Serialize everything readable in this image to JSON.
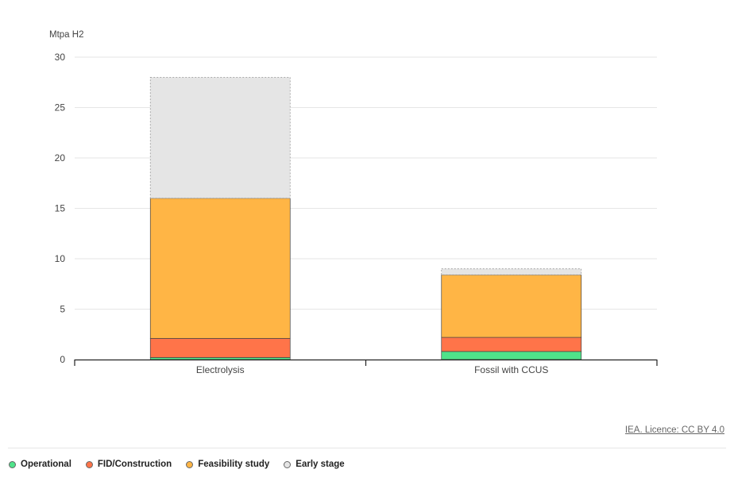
{
  "chart_data": {
    "type": "bar",
    "stacked": true,
    "ylabel": "Mtpa H2",
    "ylim": [
      0,
      30
    ],
    "yticks": [
      0,
      5,
      10,
      15,
      20,
      25,
      30
    ],
    "grid": true,
    "categories": [
      "Electrolysis",
      "Fossil with CCUS"
    ],
    "series": [
      {
        "name": "Operational",
        "color": "#4fe38a",
        "values": [
          0.2,
          0.8
        ]
      },
      {
        "name": "FID/Construction",
        "color": "#ff7449",
        "values": [
          1.9,
          1.4
        ]
      },
      {
        "name": "Feasibility study",
        "color": "#ffb545",
        "values": [
          13.9,
          6.2
        ]
      },
      {
        "name": "Early stage",
        "color": "#e5e5e5",
        "values": [
          12.0,
          0.6
        ]
      }
    ],
    "legend_position": "bottom-left"
  },
  "source": "IEA. Licence: CC BY 4.0"
}
